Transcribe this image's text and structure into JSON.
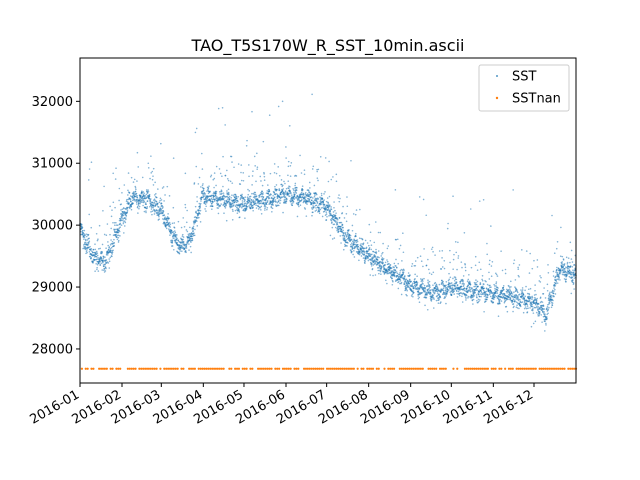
{
  "chart_data": {
    "type": "scatter",
    "title": "TAO_T5S170W_R_SST_10min.ascii",
    "xlabel": "",
    "ylabel": "",
    "x_tick_labels": [
      "2016-01",
      "2016-02",
      "2016-03",
      "2016-04",
      "2016-05",
      "2016-06",
      "2016-07",
      "2016-08",
      "2016-09",
      "2016-10",
      "2016-11",
      "2016-12"
    ],
    "y_tick_labels": [
      "28000",
      "29000",
      "30000",
      "31000",
      "32000"
    ],
    "ylim": [
      27450,
      32700
    ],
    "xlim": [
      "2016-01-01",
      "2016-12-31"
    ],
    "grid": false,
    "legend_position": "top-right",
    "colors": {
      "SST": "#1f77b4",
      "SSTnan": "#ff7f0e"
    },
    "series": [
      {
        "name": "SST",
        "marker": "dot",
        "trend_monthly_mean": {
          "x": [
            "2016-01-01",
            "2016-01-10",
            "2016-01-20",
            "2016-02-01",
            "2016-02-10",
            "2016-02-20",
            "2016-03-01",
            "2016-03-10",
            "2016-03-15",
            "2016-03-22",
            "2016-04-01",
            "2016-04-15",
            "2016-05-01",
            "2016-05-15",
            "2016-06-01",
            "2016-06-15",
            "2016-07-01",
            "2016-07-15",
            "2016-08-01",
            "2016-08-15",
            "2016-09-01",
            "2016-09-15",
            "2016-10-01",
            "2016-10-15",
            "2016-11-01",
            "2016-11-15",
            "2016-12-01",
            "2016-12-10",
            "2016-12-20",
            "2016-12-31"
          ],
          "y": [
            29950,
            29500,
            29400,
            30100,
            30450,
            30400,
            30250,
            29800,
            29650,
            29750,
            30500,
            30400,
            30350,
            30400,
            30500,
            30450,
            30300,
            29800,
            29500,
            29300,
            29050,
            28900,
            29000,
            28950,
            28900,
            28850,
            28750,
            28550,
            29300,
            29200
          ]
        }
      },
      {
        "name": "SSTnan",
        "marker": "dot",
        "constant_y": 27680,
        "x_range": [
          "2016-01-01",
          "2016-12-31"
        ]
      }
    ]
  }
}
